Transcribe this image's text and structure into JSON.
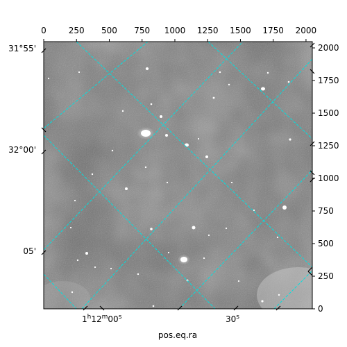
{
  "figure": {
    "x_axis_title": "pos.eq.ra",
    "pixel_x_ticks": [
      "0",
      "250",
      "500",
      "750",
      "1000",
      "1250",
      "1500",
      "1750",
      "2000"
    ],
    "pixel_y_ticks": [
      "0",
      "250",
      "500",
      "750",
      "1000",
      "1250",
      "1500",
      "1750",
      "2000"
    ],
    "ra_ticks": [
      {
        "h": "1",
        "m": "12",
        "s": "00",
        "label_style": "hms"
      },
      {
        "label": "30",
        "sec_mark": "s"
      }
    ],
    "dec_ticks": [
      "31°55'",
      "32°00'",
      "05'"
    ],
    "pixel_range": [
      0,
      2048
    ],
    "grid_color": "#00e0e0",
    "background": "grayscale sky image with stars"
  }
}
